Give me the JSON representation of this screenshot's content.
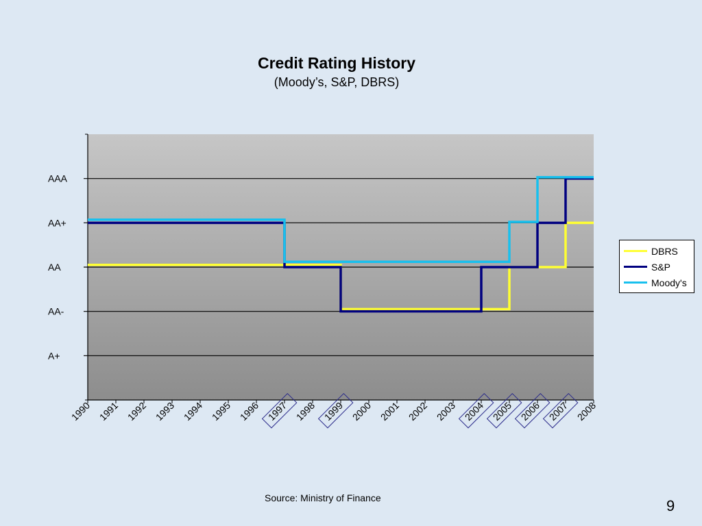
{
  "slide": {
    "title": "Credit Rating History",
    "subtitle": "(Moody’s, S&P, DBRS)",
    "source": "Source: Ministry of Finance",
    "page_number": "9"
  },
  "chart_data": {
    "type": "line",
    "step": true,
    "title": "Credit Rating History",
    "subtitle": "(Moody’s, S&P, DBRS)",
    "xlabel": "",
    "ylabel": "",
    "x": [
      "1990",
      "1991",
      "1992",
      "1993",
      "1994",
      "1995",
      "1996",
      "1997",
      "1998",
      "1999",
      "2000",
      "2001",
      "2002",
      "2003",
      "2004",
      "2005",
      "2006",
      "2007",
      "2008"
    ],
    "highlighted_years": [
      "1997",
      "1999",
      "2004",
      "2005",
      "2006",
      "2007"
    ],
    "y_categories": [
      "A+",
      "AA-",
      "AA",
      "AA+",
      "AAA"
    ],
    "y_numeric_map": {
      "A+": 1,
      "AA-": 2,
      "AA": 3,
      "AA+": 4,
      "AAA": 5
    },
    "ylim": [
      0,
      6
    ],
    "grid": true,
    "legend_position": "right",
    "series": [
      {
        "name": "DBRS",
        "color": "#ffff33",
        "steps": [
          [
            1990,
            3.05
          ],
          [
            1997,
            3.05
          ],
          [
            1999,
            2.05
          ],
          [
            2004,
            2.05
          ],
          [
            2005,
            3
          ],
          [
            2007,
            4
          ],
          [
            2008,
            4
          ]
        ]
      },
      {
        "name": "S&P",
        "color": "#000080",
        "steps": [
          [
            1990,
            4
          ],
          [
            1997,
            3
          ],
          [
            1999,
            2
          ],
          [
            2004,
            3
          ],
          [
            2006,
            4
          ],
          [
            2007,
            5
          ],
          [
            2008,
            5
          ]
        ]
      },
      {
        "name": "Moody's",
        "color": "#18c0ee",
        "steps": [
          [
            1990,
            4.07
          ],
          [
            1997,
            3.12
          ],
          [
            2005,
            4.02
          ],
          [
            2006,
            5.03
          ],
          [
            2008,
            5.03
          ]
        ]
      }
    ]
  }
}
